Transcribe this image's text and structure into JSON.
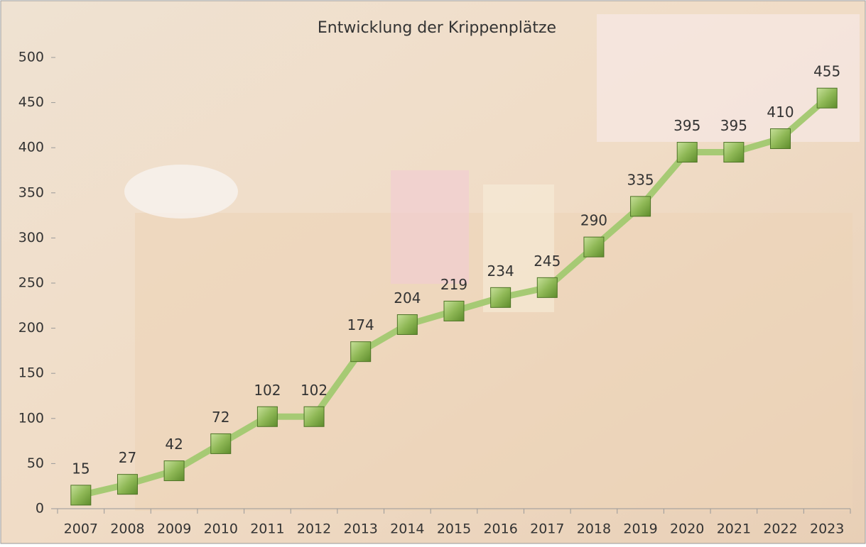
{
  "chart_data": {
    "type": "line",
    "title": "Entwicklung der Krippenplätze",
    "categories": [
      "2007",
      "2008",
      "2009",
      "2010",
      "2011",
      "2012",
      "2013",
      "2014",
      "2015",
      "2016",
      "2017",
      "2018",
      "2019",
      "2020",
      "2021",
      "2022",
      "2023"
    ],
    "values": [
      15,
      27,
      42,
      72,
      102,
      102,
      174,
      204,
      219,
      234,
      245,
      290,
      335,
      395,
      395,
      410,
      455
    ],
    "color": "#a6ca74",
    "ylim": [
      0,
      500
    ],
    "yticks": [
      0,
      50,
      100,
      150,
      200,
      250,
      300,
      350,
      400,
      450,
      500
    ]
  }
}
